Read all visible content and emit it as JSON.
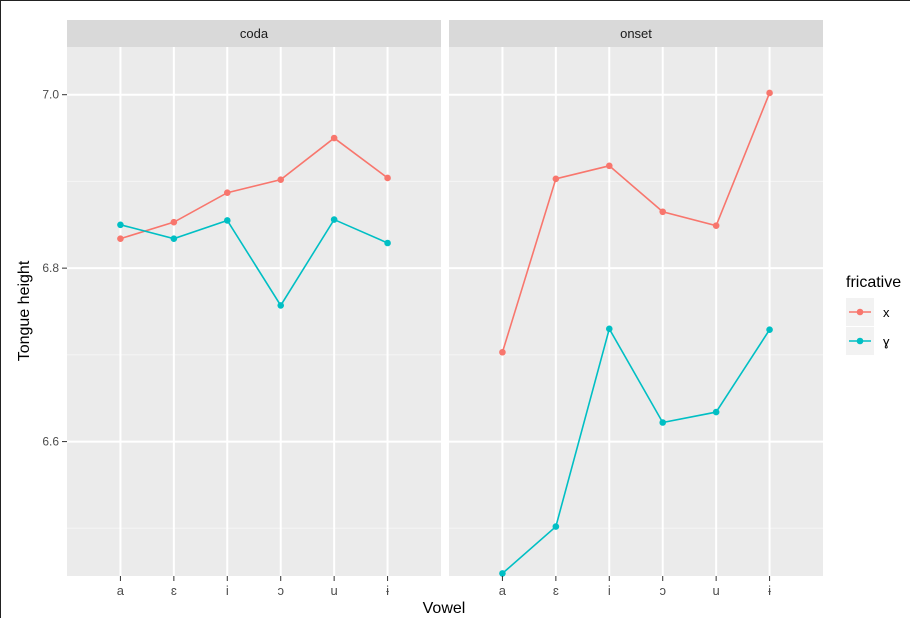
{
  "chart_data": {
    "type": "line",
    "xlabel": "Vowel",
    "ylabel": "Tongue height",
    "categories": [
      "a",
      "ɛ",
      "i",
      "ɔ",
      "u",
      "ɨ"
    ],
    "ylim": [
      6.445,
      7.055
    ],
    "yticks": [
      6.6,
      6.8,
      7.0
    ],
    "ytick_labels": [
      "6.6",
      "6.8",
      "7.0"
    ],
    "grid": true,
    "legend": {
      "title": "fricative",
      "position": "right"
    },
    "series_styles": [
      {
        "name": "x",
        "color": "#F8766D"
      },
      {
        "name": "ɣ",
        "color": "#00BFC4"
      }
    ],
    "panels": [
      {
        "strip": "coda",
        "series": [
          {
            "name": "x",
            "values": [
              6.834,
              6.853,
              6.887,
              6.902,
              6.95,
              6.904
            ]
          },
          {
            "name": "ɣ",
            "values": [
              6.85,
              6.834,
              6.855,
              6.757,
              6.856,
              6.829
            ]
          }
        ]
      },
      {
        "strip": "onset",
        "series": [
          {
            "name": "x",
            "values": [
              6.703,
              6.903,
              6.918,
              6.865,
              6.849,
              7.002
            ]
          },
          {
            "name": "ɣ",
            "values": [
              6.448,
              6.502,
              6.73,
              6.622,
              6.634,
              6.729
            ]
          }
        ]
      }
    ]
  }
}
